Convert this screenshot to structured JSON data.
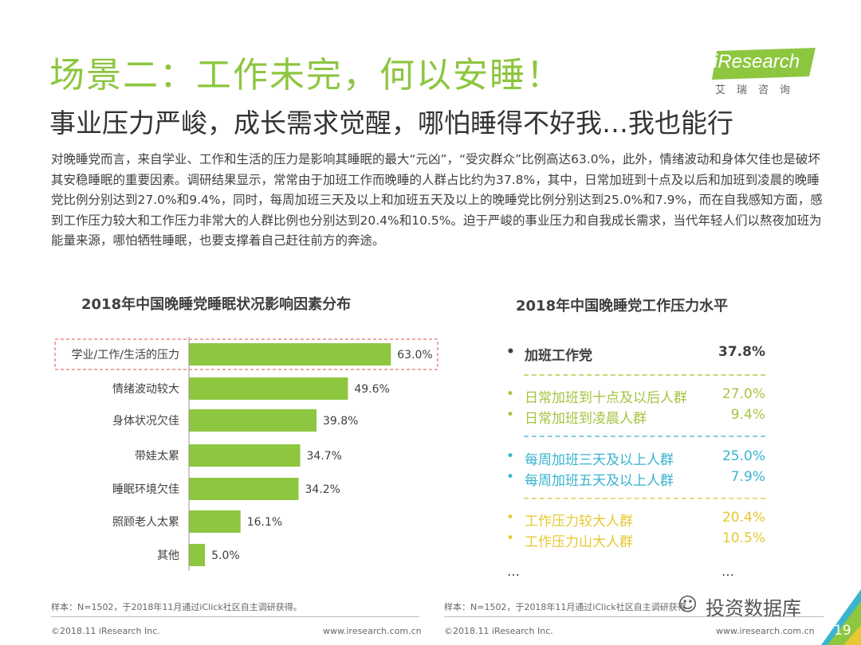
{
  "header": {
    "title": "场景二：工作未完，何以安睡！",
    "subtitle": "事业压力严峻，成长需求觉醒，哪怕睡得不好我…我也能行",
    "logo": "iResearch",
    "logo_cn": "艾瑞咨询"
  },
  "body_text": "对晚睡党而言，来自学业、工作和生活的压力是影响其睡眠的最大“元凶”，“受灾群众”比例高达63.0%，此外，情绪波动和身体欠佳也是破坏其安稳睡眠的重要因素。调研结果显示，常常由于加班工作而晚睡的人群占比约为37.8%，其中，日常加班到十点及以后和加班到凌晨的晚睡党比例分别达到27.0%和9.4%，同时，每周加班三天及以上和加班五天及以上的晚睡党比例分别达到25.0%和7.9%，而在自我感知方面，感到工作压力较大和工作压力非常大的人群比例也分别达到20.4%和10.5%。迫于严峻的事业压力和自我成长需求，当代年轻人们以熬夜加班为能量来源，哪怕牺牲睡眠，也要支撑着自己赶往前方的奔途。",
  "chart_data": {
    "type": "bar",
    "orientation": "horizontal",
    "title": "2018年中国晚睡党睡眠状况影响因素分布",
    "categories": [
      "学业/工作/生活的压力",
      "情绪波动较大",
      "身体状况欠佳",
      "带娃太累",
      "睡眠环境欠佳",
      "照顾老人太累",
      "其他"
    ],
    "values": [
      63.0,
      49.6,
      39.8,
      34.7,
      34.2,
      16.1,
      5.0
    ],
    "labels": [
      "63.0%",
      "49.6%",
      "39.8%",
      "34.7%",
      "34.2%",
      "16.1%",
      "5.0%"
    ],
    "highlighted": "学业/工作/生活的压力",
    "color": "#8dc63f",
    "highlight_color": "#e05050"
  },
  "right_panel": {
    "title": "2018年中国晚睡党工作压力水平",
    "items": [
      {
        "label": "加班工作党",
        "value": "37.8%",
        "color": "#404040"
      },
      {
        "label": "日常加班到十点及以后人群",
        "value": "27.0%",
        "color": "#a5c441"
      },
      {
        "label": "日常加班到凌晨人群",
        "value": "9.4%",
        "color": "#a5c441"
      },
      {
        "label": "每周加班三天及以上人群",
        "value": "25.0%",
        "color": "#37b3cf"
      },
      {
        "label": "每周加班五天及以上人群",
        "value": "7.9%",
        "color": "#37b3cf"
      },
      {
        "label": "工作压力较大人群",
        "value": "20.4%",
        "color": "#e6c832"
      },
      {
        "label": "工作压力山大人群",
        "value": "10.5%",
        "color": "#e6c832"
      }
    ],
    "ellipsis": "…"
  },
  "footer": {
    "source": "样本：N=1502，于2018年11月通过iClick社区自主调研获得。",
    "source_right": "样本：N=1502，于2018年11月通过iClick社区自主调研获得",
    "copyright": "©2018.11 iResearch Inc.",
    "url": "www.iresearch.com.cn",
    "page": "19",
    "watermark": "投资数据库"
  }
}
